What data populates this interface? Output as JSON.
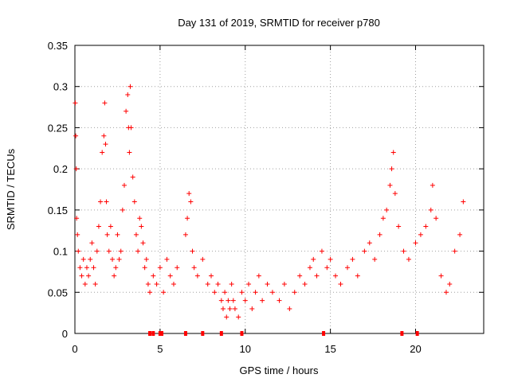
{
  "chart_data": {
    "type": "scatter",
    "title": "Day 131 of 2019, SRMTID for receiver p780",
    "xlabel": "GPS time / hours",
    "ylabel": "SRMTID / TECUs",
    "xlim": [
      0,
      24
    ],
    "ylim": [
      0,
      0.35
    ],
    "xticks": [
      0,
      5,
      10,
      15,
      20
    ],
    "xtick_labels": [
      "0",
      "5",
      "10",
      "15",
      "20"
    ],
    "yticks": [
      0,
      0.05,
      0.1,
      0.15,
      0.2,
      0.25,
      0.3,
      0.35
    ],
    "ytick_labels": [
      "0",
      "0.05",
      "0.1",
      "0.15",
      "0.2",
      "0.25",
      "0.3",
      "0.35"
    ],
    "grid": true,
    "marker": "plus",
    "color": "#ff0000",
    "series": [
      {
        "name": "SRMTID",
        "x": [
          0.02,
          0.05,
          0.08,
          0.1,
          0.15,
          0.2,
          0.3,
          0.4,
          0.5,
          0.6,
          0.7,
          0.8,
          0.9,
          1.0,
          1.1,
          1.2,
          1.3,
          1.4,
          1.5,
          1.6,
          1.7,
          1.75,
          1.8,
          1.85,
          1.9,
          2.0,
          2.1,
          2.2,
          2.3,
          2.4,
          2.5,
          2.6,
          2.7,
          2.8,
          2.9,
          3.0,
          3.1,
          3.15,
          3.2,
          3.25,
          3.3,
          3.4,
          3.5,
          3.6,
          3.7,
          3.8,
          3.9,
          4.0,
          4.1,
          4.2,
          4.3,
          4.4,
          4.6,
          4.8,
          5.0,
          5.2,
          5.4,
          5.6,
          5.8,
          6.0,
          6.5,
          6.6,
          6.7,
          6.8,
          6.9,
          7.0,
          7.2,
          7.5,
          7.8,
          8.0,
          8.2,
          8.4,
          8.6,
          8.7,
          8.8,
          8.9,
          9.0,
          9.1,
          9.2,
          9.3,
          9.4,
          9.6,
          9.8,
          10.0,
          10.2,
          10.4,
          10.6,
          10.8,
          11.0,
          11.3,
          11.6,
          12.0,
          12.3,
          12.6,
          12.9,
          13.2,
          13.5,
          13.8,
          14.0,
          14.2,
          14.5,
          14.8,
          15.0,
          15.3,
          15.6,
          16.0,
          16.3,
          16.6,
          17.0,
          17.3,
          17.6,
          17.9,
          18.1,
          18.3,
          18.5,
          18.6,
          18.7,
          18.8,
          19.0,
          19.3,
          19.6,
          20.0,
          20.3,
          20.6,
          20.9,
          21.0,
          21.2,
          21.5,
          21.8,
          22.0,
          22.3,
          22.6,
          22.8
        ],
        "y": [
          0.28,
          0.24,
          0.2,
          0.14,
          0.12,
          0.1,
          0.08,
          0.07,
          0.09,
          0.06,
          0.08,
          0.07,
          0.09,
          0.11,
          0.08,
          0.06,
          0.1,
          0.13,
          0.16,
          0.22,
          0.24,
          0.28,
          0.23,
          0.16,
          0.12,
          0.1,
          0.13,
          0.09,
          0.07,
          0.08,
          0.12,
          0.09,
          0.1,
          0.15,
          0.18,
          0.27,
          0.29,
          0.25,
          0.22,
          0.3,
          0.25,
          0.19,
          0.16,
          0.12,
          0.1,
          0.14,
          0.13,
          0.11,
          0.08,
          0.09,
          0.06,
          0.05,
          0.07,
          0.06,
          0.08,
          0.05,
          0.09,
          0.07,
          0.06,
          0.08,
          0.12,
          0.14,
          0.17,
          0.16,
          0.1,
          0.08,
          0.07,
          0.09,
          0.06,
          0.07,
          0.05,
          0.06,
          0.04,
          0.03,
          0.05,
          0.02,
          0.04,
          0.03,
          0.06,
          0.04,
          0.03,
          0.02,
          0.05,
          0.04,
          0.06,
          0.03,
          0.05,
          0.07,
          0.04,
          0.06,
          0.05,
          0.04,
          0.06,
          0.03,
          0.05,
          0.07,
          0.06,
          0.08,
          0.09,
          0.07,
          0.1,
          0.08,
          0.09,
          0.07,
          0.06,
          0.08,
          0.09,
          0.07,
          0.1,
          0.11,
          0.09,
          0.12,
          0.14,
          0.15,
          0.18,
          0.2,
          0.22,
          0.17,
          0.13,
          0.1,
          0.09,
          0.11,
          0.12,
          0.13,
          0.15,
          0.18,
          0.14,
          0.07,
          0.05,
          0.06,
          0.1,
          0.12,
          0.16
        ]
      }
    ],
    "ticks_at_zero_x": [
      4.4,
      4.6,
      5.0,
      5.1,
      6.5,
      7.5,
      8.6,
      9.8,
      14.6,
      19.2,
      20.1
    ]
  }
}
